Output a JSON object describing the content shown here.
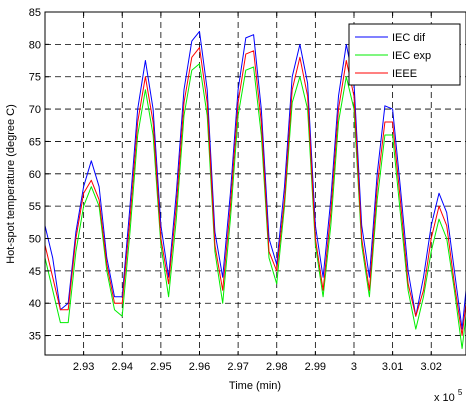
{
  "chart_data": {
    "type": "line",
    "xlabel": "Time (min)",
    "ylabel": "Hot-spot temperature (degree C)",
    "x_multiplier_label": "x 10",
    "x_multiplier_exponent": "5",
    "xlim": [
      2.92,
      3.029
    ],
    "ylim": [
      32,
      85
    ],
    "xticks": [
      2.93,
      2.94,
      2.95,
      2.96,
      2.97,
      2.98,
      2.99,
      3.0,
      3.01,
      3.02
    ],
    "xtick_labels": [
      "2.93",
      "2.94",
      "2.95",
      "2.96",
      "2.97",
      "2.98",
      "2.99",
      "3",
      "3.01",
      "3.02"
    ],
    "yticks": [
      35,
      40,
      45,
      50,
      55,
      60,
      65,
      70,
      75,
      80,
      85
    ],
    "ytick_labels": [
      "35",
      "40",
      "45",
      "50",
      "55",
      "60",
      "65",
      "70",
      "75",
      "80",
      "85"
    ],
    "grid": true,
    "legend_position": "top-right",
    "series": [
      {
        "name": "IEC dif",
        "color": "#0000ff",
        "x": [
          2.92,
          2.922,
          2.924,
          2.926,
          2.928,
          2.93,
          2.932,
          2.934,
          2.936,
          2.938,
          2.94,
          2.942,
          2.944,
          2.946,
          2.948,
          2.95,
          2.952,
          2.954,
          2.956,
          2.958,
          2.96,
          2.962,
          2.964,
          2.966,
          2.968,
          2.97,
          2.972,
          2.974,
          2.976,
          2.978,
          2.98,
          2.982,
          2.984,
          2.986,
          2.988,
          2.99,
          2.992,
          2.994,
          2.996,
          2.998,
          3.0,
          3.002,
          3.004,
          3.006,
          3.008,
          3.01,
          3.012,
          3.014,
          3.016,
          3.018,
          3.02,
          3.022,
          3.024,
          3.026,
          3.028,
          3.029
        ],
        "y": [
          52,
          47,
          39,
          40,
          51,
          58,
          62,
          58,
          47,
          41,
          41,
          55,
          70,
          77.5,
          70,
          52,
          44,
          57,
          73,
          80.5,
          82,
          73,
          51,
          44,
          57,
          73,
          81,
          81.5,
          70,
          50,
          46,
          58,
          75,
          80,
          74,
          52,
          44,
          56,
          72,
          80,
          74,
          52,
          44,
          60,
          70.5,
          70,
          58,
          45,
          38,
          44,
          52,
          57,
          54,
          45,
          36,
          42
        ]
      },
      {
        "name": "IEC exp",
        "color": "#00ee00",
        "x": [
          2.92,
          2.922,
          2.924,
          2.926,
          2.928,
          2.93,
          2.932,
          2.934,
          2.936,
          2.938,
          2.94,
          2.942,
          2.944,
          2.946,
          2.948,
          2.95,
          2.952,
          2.954,
          2.956,
          2.958,
          2.96,
          2.962,
          2.964,
          2.966,
          2.968,
          2.97,
          2.972,
          2.974,
          2.976,
          2.978,
          2.98,
          2.982,
          2.984,
          2.986,
          2.988,
          2.99,
          2.992,
          2.994,
          2.996,
          2.998,
          3.0,
          3.002,
          3.004,
          3.006,
          3.008,
          3.01,
          3.012,
          3.014,
          3.016,
          3.018,
          3.02,
          3.022,
          3.024,
          3.026,
          3.028,
          3.029
        ],
        "y": [
          47,
          42,
          37,
          37,
          48,
          55,
          58,
          55,
          45,
          39,
          38,
          51,
          66,
          73,
          66,
          49,
          41,
          53,
          69,
          76,
          77,
          69,
          48,
          40,
          53,
          69,
          76,
          76.5,
          66,
          47,
          43,
          55,
          71,
          75,
          70,
          49,
          41,
          52,
          68,
          75,
          70,
          49,
          41,
          56,
          66,
          66,
          54,
          42,
          36,
          41,
          48,
          53,
          50,
          42,
          33,
          38
        ]
      },
      {
        "name": "IEEE",
        "color": "#ff0000",
        "x": [
          2.92,
          2.922,
          2.924,
          2.926,
          2.928,
          2.93,
          2.932,
          2.934,
          2.936,
          2.938,
          2.94,
          2.942,
          2.944,
          2.946,
          2.948,
          2.95,
          2.952,
          2.954,
          2.956,
          2.958,
          2.96,
          2.962,
          2.964,
          2.966,
          2.968,
          2.97,
          2.972,
          2.974,
          2.976,
          2.978,
          2.98,
          2.982,
          2.984,
          2.986,
          2.988,
          2.99,
          2.992,
          2.994,
          2.996,
          2.998,
          3.0,
          3.002,
          3.004,
          3.006,
          3.008,
          3.01,
          3.012,
          3.014,
          3.016,
          3.018,
          3.02,
          3.022,
          3.024,
          3.026,
          3.028,
          3.029
        ],
        "y": [
          49,
          44,
          39,
          39,
          50,
          57,
          59,
          56,
          46,
          40,
          40,
          53,
          68,
          75,
          68,
          50,
          43,
          55,
          71,
          78,
          79.5,
          71,
          49,
          42,
          55,
          71,
          78.5,
          79,
          68,
          48,
          45,
          56,
          73,
          78,
          72,
          50,
          42,
          54,
          70,
          77.5,
          72,
          50,
          42,
          58,
          68,
          68,
          56,
          43,
          38,
          42,
          50,
          55,
          52,
          43,
          35,
          40
        ]
      }
    ]
  }
}
